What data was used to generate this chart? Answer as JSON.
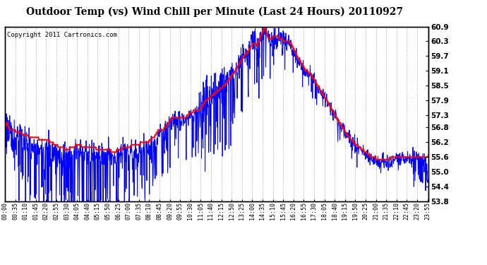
{
  "title": "Outdoor Temp (vs) Wind Chill per Minute (Last 24 Hours) 20110927",
  "copyright": "Copyright 2011 Cartronics.com",
  "ylim": [
    53.8,
    60.9
  ],
  "yticks": [
    53.8,
    54.4,
    55.0,
    55.6,
    56.2,
    56.8,
    57.3,
    57.9,
    58.5,
    59.1,
    59.7,
    60.3,
    60.9
  ],
  "xtick_labels": [
    "00:00",
    "00:35",
    "01:10",
    "01:45",
    "02:20",
    "02:55",
    "03:30",
    "04:05",
    "04:40",
    "05:15",
    "05:50",
    "06:25",
    "07:00",
    "07:35",
    "08:10",
    "08:45",
    "09:20",
    "09:55",
    "10:30",
    "11:05",
    "11:40",
    "12:15",
    "12:50",
    "13:25",
    "14:00",
    "14:35",
    "15:10",
    "15:45",
    "16:20",
    "16:55",
    "17:30",
    "18:05",
    "18:40",
    "19:15",
    "19:50",
    "20:25",
    "21:00",
    "21:35",
    "22:10",
    "22:45",
    "23:20",
    "23:55"
  ],
  "bg_color": "#ffffff",
  "grid_color": "#bbbbbb",
  "outer_bg": "#ffffff",
  "red_color": "#ff0000",
  "blue_color": "#0000ff",
  "title_fontsize": 10,
  "tick_fontsize": 6,
  "copyright_fontsize": 6.5,
  "red_linewidth": 1.5,
  "blue_linewidth": 0.7
}
